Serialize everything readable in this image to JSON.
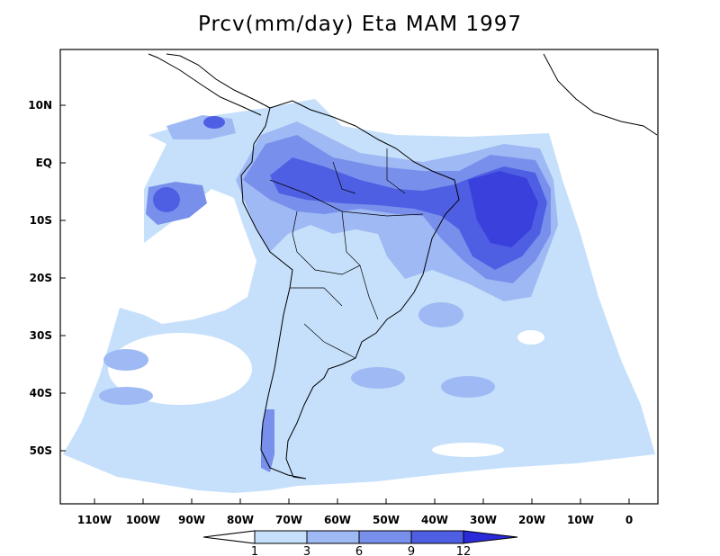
{
  "title": "Prcv(mm/day) Eta MAM 1997",
  "lat_labels": [
    "10N",
    "EQ",
    "10S",
    "20S",
    "30S",
    "40S",
    "50S"
  ],
  "lon_labels": [
    "110W",
    "100W",
    "90W",
    "80W",
    "70W",
    "60W",
    "50W",
    "40W",
    "30W",
    "20W",
    "10W",
    "0"
  ],
  "colorbar": {
    "levels": [
      "1",
      "3",
      "6",
      "9",
      "12"
    ],
    "colors": [
      "#ffffff",
      "#c6e0fb",
      "#9fb9f4",
      "#7890ec",
      "#4f5fe4",
      "#2a2ada"
    ]
  },
  "map_colors": {
    "ocean_bg": "#ffffff",
    "light": "#c6e0fb",
    "medium": "#9fb9f4",
    "dark": "#7890ec",
    "heavy": "#4f5fe4",
    "extreme": "#2a2ada",
    "coast": "#000000"
  }
}
